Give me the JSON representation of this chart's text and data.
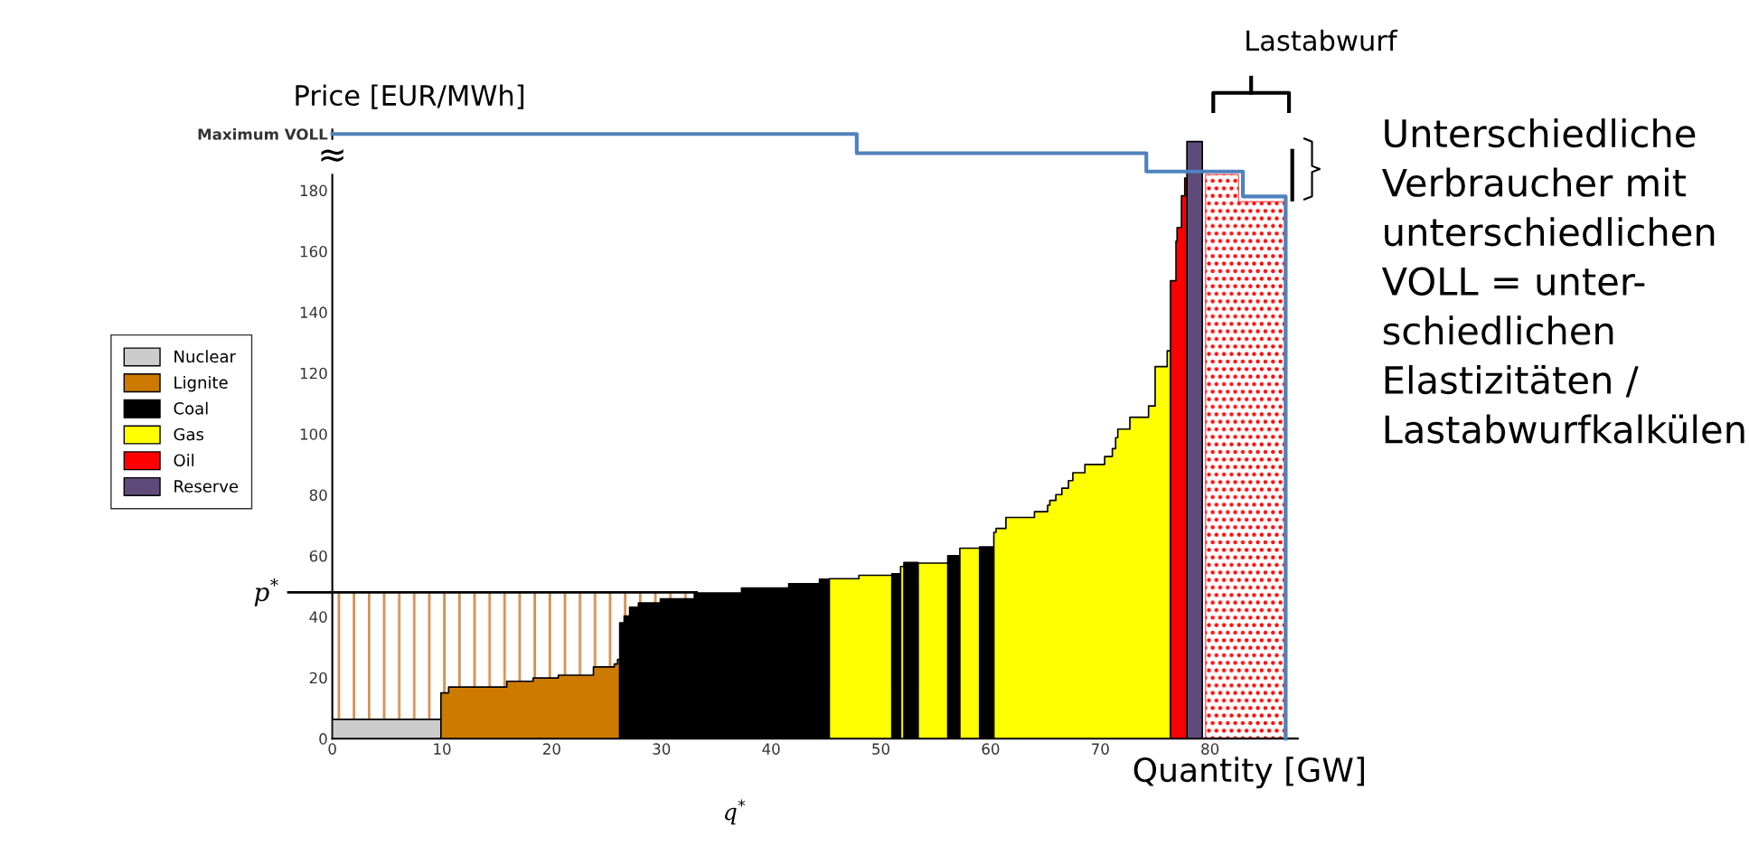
{
  "chart_data": {
    "type": "area",
    "ylabel": "Price [EUR/MWh]",
    "xlabel": "Quantity [GW]",
    "xlim": [
      0,
      88
    ],
    "xticks": [
      0,
      10,
      20,
      30,
      40,
      50,
      60,
      70,
      80
    ],
    "ylim": [
      0,
      200
    ],
    "yticks": [
      0,
      20,
      40,
      60,
      80,
      100,
      120,
      140,
      160,
      180,
      {
        "value": 198.5,
        "label": "Maximum VOLL"
      }
    ],
    "grid": false,
    "legend": "left",
    "series": [
      {
        "type": "area",
        "color": "#d09050",
        "x": [
          0,
          33.2
        ],
        "values": [
          48,
          48
        ]
      },
      {
        "name": "Nuclear",
        "color": "#cccccc",
        "x": [
          0,
          0,
          9.9,
          9.9
        ],
        "values": [
          0,
          6.3,
          6.3,
          0
        ]
      },
      {
        "name": "Lignite",
        "color": "#cc7a00",
        "x": [
          9.9,
          9.9,
          10.6,
          10.6,
          15.9,
          15.9,
          18.3,
          18.3,
          20.6,
          20.6,
          23.8,
          23.8,
          25.7,
          25.7,
          26.0,
          26.0,
          26.2,
          26.2
        ],
        "values": [
          0,
          15,
          15,
          16.9,
          16.9,
          18.8,
          18.8,
          19.9,
          19.9,
          20.8,
          20.8,
          23.5,
          23.5,
          24.5,
          24.5,
          26,
          26,
          0
        ]
      },
      {
        "name": "Coal",
        "color": "#000000",
        "x": [
          26.2,
          26.2,
          26.6,
          26.6,
          27.1,
          27.1,
          27.9,
          27.9,
          29.9,
          29.9,
          33.0,
          33.0,
          37.3,
          37.3,
          41.6,
          41.6,
          44.4,
          44.4,
          45.3,
          45.3,
          51.0,
          51.0,
          51.8,
          51.8,
          52.1,
          52.1,
          53.4,
          53.4,
          56.1,
          56.1,
          57.2,
          57.2,
          59.0,
          59.0,
          60.3,
          60.3
        ],
        "values": [
          0,
          38,
          38,
          40.2,
          40.2,
          43.1,
          43.1,
          44.5,
          44.5,
          45.9,
          45.9,
          47.8,
          47.8,
          49.4,
          49.4,
          50.8,
          50.8,
          52.3,
          52.3,
          0,
          0,
          54.1,
          54.1,
          0,
          0,
          57.8,
          57.8,
          0,
          0,
          60,
          60,
          0,
          0,
          62.9,
          62.9,
          0
        ]
      },
      {
        "name": "Gas",
        "color": "#ffff00",
        "x": [
          45.3,
          45.3,
          48.0,
          48.0,
          51.0,
          51.0,
          51.8,
          51.8,
          52.1,
          52.1,
          53.4,
          53.4,
          56.1,
          56.1,
          57.2,
          57.2,
          59.0,
          59.0,
          60.3,
          60.3,
          60.5,
          60.5,
          61.4,
          61.4,
          64.0,
          64.0,
          65.2,
          65.2,
          65.4,
          65.4,
          65.95,
          65.95,
          66.5,
          66.5,
          67.1,
          67.1,
          67.5,
          67.5,
          68.6,
          68.6,
          70.4,
          70.4,
          71.1,
          71.1,
          71.4,
          71.4,
          71.6,
          71.6,
          72.7,
          72.7,
          74.4,
          74.4,
          75.0,
          75.0,
          76.1,
          76.1,
          76.4,
          76.4
        ],
        "values": [
          0,
          52.5,
          52.5,
          53.6,
          53.6,
          0,
          0,
          56.5,
          56.5,
          0,
          0,
          57.6,
          57.6,
          0,
          0,
          62.5,
          62.5,
          0,
          0,
          67.7,
          67.7,
          69,
          69,
          72.6,
          72.6,
          74.5,
          74.5,
          76.6,
          76.6,
          78.2,
          78.2,
          80.1,
          80.1,
          82.2,
          82.2,
          84.7,
          84.7,
          87.3,
          87.3,
          90.0,
          90.0,
          92.6,
          92.6,
          95.2,
          95.2,
          98.8,
          98.8,
          101.6,
          101.6,
          105.5,
          105.5,
          109.2,
          109.2,
          122.1,
          122.1,
          127.3,
          127.3,
          0
        ]
      },
      {
        "name": "Oil",
        "color": "#ff0000",
        "x": [
          76.4,
          76.4,
          76.9,
          76.9,
          77.0,
          77.0,
          77.4,
          77.4,
          77.7,
          77.7,
          77.9,
          77.9
        ],
        "values": [
          0,
          150.3,
          150.3,
          163.3,
          163.3,
          167.8,
          167.8,
          178.2,
          178.2,
          184,
          184,
          0
        ]
      },
      {
        "name": "Reserve",
        "color": "#5e4b7a",
        "x": [
          77.9,
          77.9,
          79.3,
          79.3
        ],
        "values": [
          0,
          196,
          196,
          0
        ]
      },
      {
        "type": "area",
        "color": "#ff0000",
        "line_style": "dotted",
        "x": [
          79.6,
          79.6,
          82.6,
          82.6,
          86.8,
          86.8
        ],
        "values": [
          0,
          185.2,
          185.2,
          176.3,
          176.3,
          0
        ]
      },
      {
        "type": "line",
        "color": "#4f81bd",
        "x": [
          0,
          47.8,
          47.8,
          74.2,
          74.2,
          83.0,
          83.0,
          86.9,
          86.9
        ],
        "values": [
          198.5,
          198.5,
          192.2,
          192.2,
          186.2,
          186.2,
          178,
          178,
          0
        ]
      }
    ],
    "ref_lines": [
      {
        "axis": "y",
        "value": 48,
        "label": "p$^{*}$",
        "color": "#000000"
      }
    ],
    "annotations": [
      {
        "text": "≈",
        "x": 0,
        "y": 191
      },
      "q$^{*}$",
      "Lastabwurf",
      "Unterschiedliche\nVerbraucher mit\nunterschiedlichen\nVOLL = unter-\nschiedlichen\nElastizitäten /\nLastabwurfkalkülen"
    ]
  }
}
